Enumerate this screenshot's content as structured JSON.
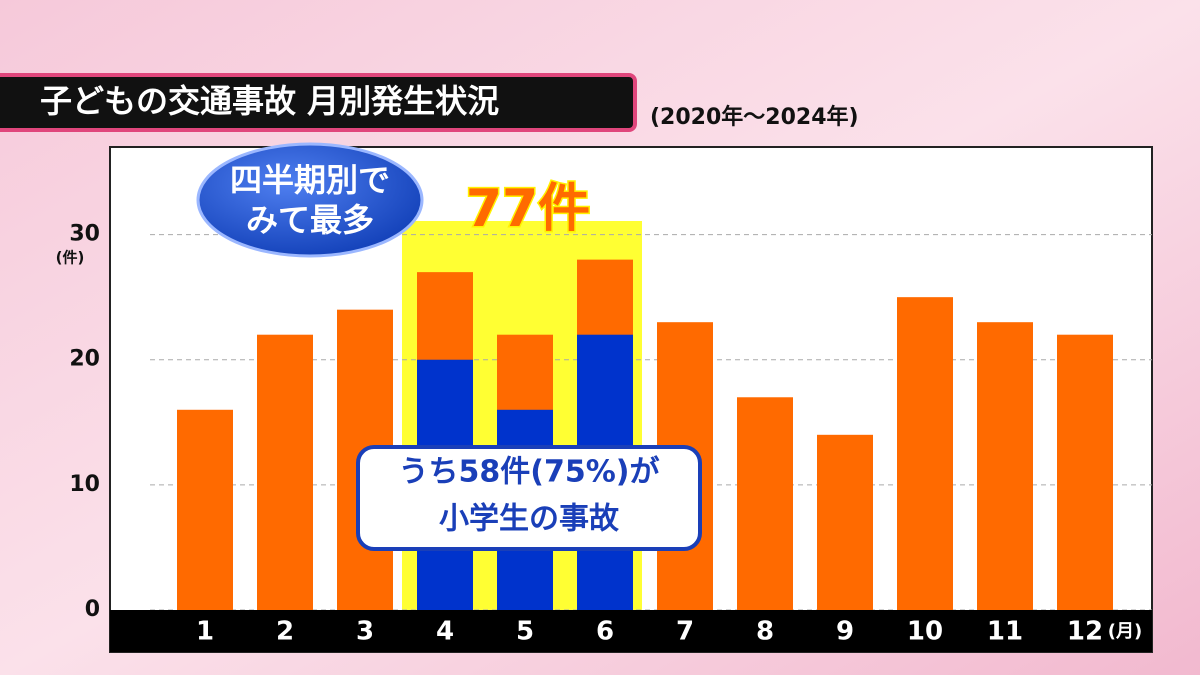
{
  "chart_data": {
    "type": "bar",
    "title": "子どもの交通事故  月別発生状況",
    "subtitle": "(2020年〜2024年)",
    "categories": [
      "1",
      "2",
      "3",
      "4",
      "5",
      "6",
      "7",
      "8",
      "9",
      "10",
      "11",
      "12"
    ],
    "series": [
      {
        "color": "#ff6a00",
        "values": [
          16,
          22,
          24,
          27,
          22,
          28,
          23,
          17,
          14,
          25,
          23,
          22
        ]
      },
      {
        "color": "#0033cc",
        "values": [
          null,
          null,
          null,
          20,
          16,
          22,
          null,
          null,
          null,
          null,
          null,
          null
        ]
      }
    ],
    "ylim": [
      0,
      37
    ],
    "yticks": [
      0,
      10,
      20,
      30
    ],
    "grid": true,
    "y_unit": "(件)",
    "x_unit": "(月)",
    "annotations": {
      "bubble": [
        "四半期別で",
        "みて最多"
      ],
      "total": "77件",
      "callout": [
        "うち58件(75%)が",
        "小学生の事故"
      ]
    }
  }
}
